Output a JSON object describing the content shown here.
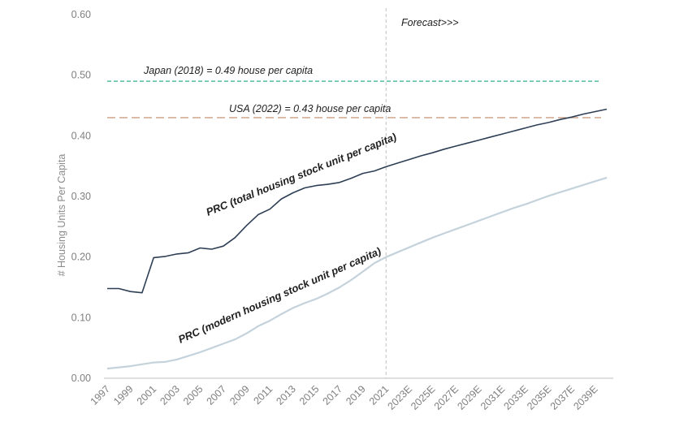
{
  "chart_data": {
    "type": "line",
    "ylabel": "# Housing Units Per Capita",
    "ylim": [
      0,
      0.6
    ],
    "y_ticks": [
      "0.00",
      "0.10",
      "0.20",
      "0.30",
      "0.40",
      "0.50",
      "0.60"
    ],
    "x": [
      "1997",
      "1998",
      "1999",
      "2000",
      "2001",
      "2002",
      "2003",
      "2004",
      "2005",
      "2006",
      "2007",
      "2008",
      "2009",
      "2010",
      "2011",
      "2012",
      "2013",
      "2014",
      "2015",
      "2016",
      "2017",
      "2018",
      "2019",
      "2020",
      "2021",
      "2022E",
      "2023E",
      "2024E",
      "2025E",
      "2026E",
      "2027E",
      "2028E",
      "2029E",
      "2030E",
      "2031E",
      "2032E",
      "2033E",
      "2034E",
      "2035E",
      "2036E",
      "2037E",
      "2038E",
      "2039E",
      "2040E"
    ],
    "x_tick_labels": [
      "1997",
      "1999",
      "2001",
      "2003",
      "2005",
      "2007",
      "2009",
      "2011",
      "2013",
      "2015",
      "2017",
      "2019",
      "2021",
      "2023E",
      "2025E",
      "2027E",
      "2029E",
      "2031E",
      "2033E",
      "2035E",
      "2037E",
      "2039E"
    ],
    "series": [
      {
        "name": "PRC (total housing stock unit per capita)",
        "color": "#2e3f55",
        "values": [
          0.148,
          0.148,
          0.143,
          0.141,
          0.199,
          0.201,
          0.205,
          0.207,
          0.215,
          0.213,
          0.218,
          0.232,
          0.252,
          0.27,
          0.279,
          0.296,
          0.306,
          0.314,
          0.318,
          0.32,
          0.323,
          0.33,
          0.338,
          0.342,
          0.349,
          0.355,
          0.361,
          0.367,
          0.372,
          0.378,
          0.383,
          0.388,
          0.393,
          0.398,
          0.403,
          0.408,
          0.413,
          0.418,
          0.422,
          0.427,
          0.431,
          0.436,
          0.44,
          0.444
        ]
      },
      {
        "name": "PRC (modern housing stock unit per capita)",
        "color": "#c4d2db",
        "values": [
          0.016,
          0.018,
          0.02,
          0.023,
          0.026,
          0.027,
          0.031,
          0.037,
          0.043,
          0.05,
          0.057,
          0.064,
          0.074,
          0.086,
          0.095,
          0.106,
          0.116,
          0.124,
          0.131,
          0.14,
          0.15,
          0.162,
          0.176,
          0.19,
          0.2,
          0.208,
          0.216,
          0.224,
          0.232,
          0.239,
          0.246,
          0.253,
          0.26,
          0.267,
          0.274,
          0.281,
          0.287,
          0.294,
          0.301,
          0.307,
          0.313,
          0.319,
          0.325,
          0.331
        ]
      }
    ],
    "reference_lines": [
      {
        "label": "Japan (2018) = 0.49 house per capita",
        "value": 0.49,
        "color": "#6cc5ad"
      },
      {
        "label": "USA (2022) = 0.43 house per capita",
        "value": 0.43,
        "color": "#d9b7a2"
      }
    ],
    "forecast": {
      "label": "Forecast>>>",
      "at": "2021",
      "color": "#c0c0c0"
    }
  }
}
